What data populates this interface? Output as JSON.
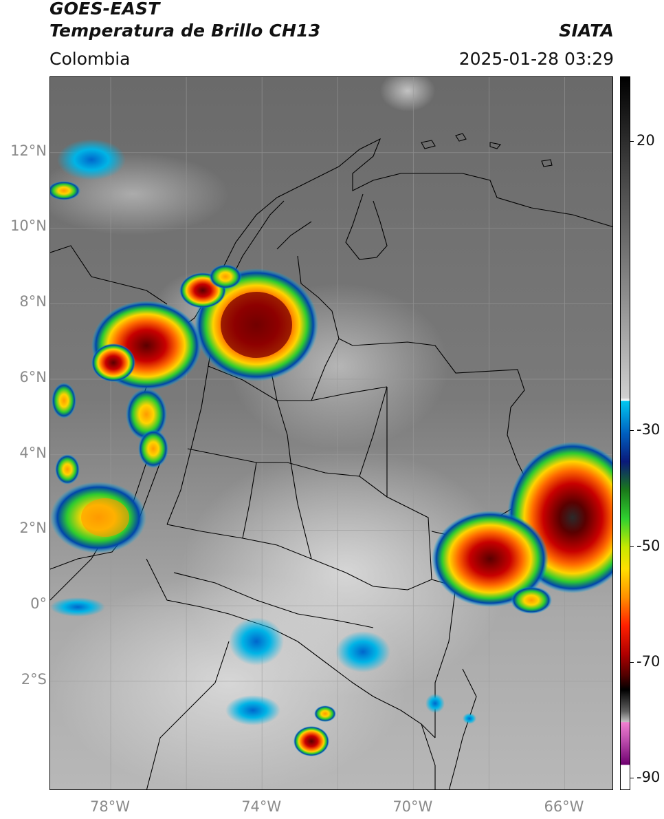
{
  "header": {
    "title_line1": "GOES-EAST",
    "title_line2": "Temperatura de Brillo CH13",
    "brand": "SIATA",
    "region": "Colombia",
    "timestamp": "2025-01-28 03:29"
  },
  "map": {
    "latitude_labels": [
      "12°N",
      "10°N",
      "8°N",
      "6°N",
      "4°N",
      "2°N",
      "0°",
      "2°S"
    ],
    "longitude_labels": [
      "78°W",
      "74°W",
      "70°W",
      "66°W"
    ],
    "lat_values": [
      12,
      10,
      8,
      6,
      4,
      2,
      0,
      -2
    ],
    "lon_values": [
      -78,
      -74,
      -70,
      -66
    ],
    "extent": {
      "lon_min": -79.6,
      "lon_max": -64.7,
      "lat_min": -4.9,
      "lat_max": 14.0
    }
  },
  "colorbar": {
    "tick_labels": [
      "20",
      "-30",
      "-50",
      "-70",
      "-90"
    ],
    "tick_values": [
      20,
      -30,
      -50,
      -70,
      -90
    ],
    "range": [
      -92,
      31
    ],
    "units": ""
  },
  "colors": {
    "cloud_cold": "#c00000",
    "cloud_mid": "#ffd400",
    "cloud_edge": "#00b4e6",
    "ground_gray": "#6e6e6e",
    "gridline": "#9a9a9a"
  }
}
